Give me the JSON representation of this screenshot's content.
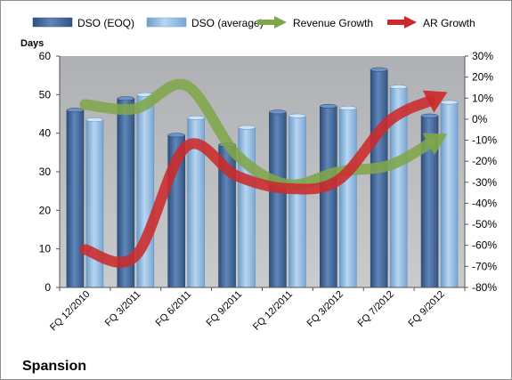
{
  "chart_data": {
    "type": "bar",
    "title": "Spansion",
    "ylabel": "Days",
    "categories": [
      "FQ 12/2010",
      "FQ 3/2011",
      "FQ 6/2011",
      "FQ 9/2011",
      "FQ 12/2011",
      "FQ 3/2012",
      "FQ 7/2012",
      "FQ 9/2012"
    ],
    "ylim": [
      0,
      60
    ],
    "y_ticks": [
      "0",
      "10",
      "20",
      "30",
      "40",
      "50",
      "60"
    ],
    "y2lim": [
      -80,
      30
    ],
    "y2_ticks": [
      "-80%",
      "-70%",
      "-60%",
      "-50%",
      "-40%",
      "-30%",
      "-20%",
      "-10%",
      "0%",
      "10%",
      "20%",
      "30%"
    ],
    "grid": false,
    "legend_position": "top",
    "series": [
      {
        "name": "DSO (EOQ)",
        "type": "bar",
        "axis": "left",
        "color": "#4a6fa5",
        "values": [
          46,
          49,
          39.5,
          37,
          45.5,
          47,
          56.5,
          44.5
        ]
      },
      {
        "name": "DSO (average)",
        "type": "bar",
        "axis": "left",
        "color": "#9ec4e8",
        "values": [
          43.5,
          50,
          44,
          41.5,
          44.5,
          46.5,
          52,
          48
        ]
      },
      {
        "name": "Revenue Growth",
        "type": "line",
        "axis": "right",
        "color": "#7fa64a",
        "values": [
          7,
          5,
          16,
          -17,
          -31,
          -25,
          -22,
          -9
        ]
      },
      {
        "name": "AR Growth",
        "type": "line",
        "axis": "right",
        "color": "#cc2a2a",
        "values": [
          -62,
          -65,
          -13,
          -27,
          -33,
          -29,
          -1,
          11
        ]
      }
    ]
  }
}
